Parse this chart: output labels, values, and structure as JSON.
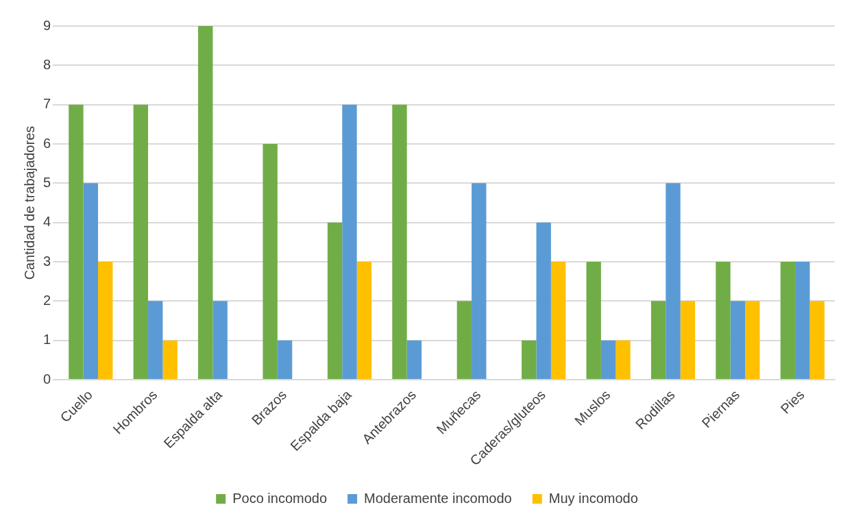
{
  "chart_data": {
    "type": "bar",
    "ylabel": "Cantidad de trabajadores",
    "categories": [
      "Cuello",
      "Hombros",
      "Espalda alta",
      "Brazos",
      "Espalda baja",
      "Antebrazos",
      "Muñecas",
      "Caderas/gluteos",
      "Muslos",
      "Rodillas",
      "Piernas",
      "Pies"
    ],
    "series": [
      {
        "name": "Poco incomodo",
        "color": "#70ad47",
        "values": [
          7,
          7,
          9,
          6,
          4,
          7,
          2,
          1,
          3,
          2,
          3,
          3
        ]
      },
      {
        "name": "Moderamente incomodo",
        "color": "#5b9bd5",
        "values": [
          5,
          2,
          2,
          1,
          7,
          1,
          5,
          4,
          1,
          5,
          2,
          3
        ]
      },
      {
        "name": "Muy incomodo",
        "color": "#ffc000",
        "values": [
          3,
          1,
          0,
          0,
          3,
          0,
          0,
          3,
          1,
          2,
          2,
          2
        ]
      }
    ],
    "ylim": [
      0,
      9
    ],
    "yticks": [
      0,
      1,
      2,
      3,
      4,
      5,
      6,
      7,
      8,
      9
    ],
    "grid": "y",
    "legend": "bottom"
  }
}
